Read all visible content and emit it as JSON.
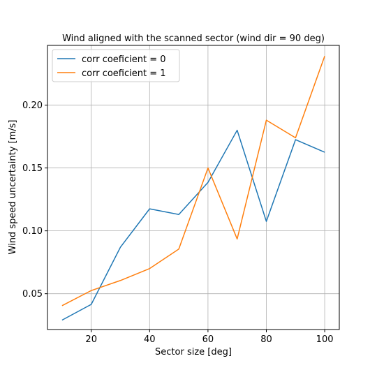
{
  "chart_data": {
    "type": "line",
    "title": "Wind aligned with the scanned sector (wind dir = 90 deg)",
    "xlabel": "Sector size [deg]",
    "ylabel": "Wind speed uncertainty [m/s]",
    "x": [
      10,
      20,
      30,
      40,
      50,
      60,
      70,
      80,
      90,
      100
    ],
    "xlim": [
      5,
      105
    ],
    "ylim": [
      0.0215,
      0.2475
    ],
    "xticks": [
      20,
      40,
      60,
      80,
      100
    ],
    "yticks": [
      0.05,
      0.1,
      0.15,
      0.2
    ],
    "ytick_labels": [
      "0.05",
      "0.10",
      "0.15",
      "0.20"
    ],
    "grid": true,
    "legend_position": "upper-left",
    "series": [
      {
        "name": "corr coeficient = 0",
        "color": "#1f77b4",
        "values": [
          0.029,
          0.0415,
          0.087,
          0.1175,
          0.113,
          0.1385,
          0.18,
          0.1075,
          0.1725,
          0.1625
        ]
      },
      {
        "name": "corr coeficient = 1",
        "color": "#ff7f0e",
        "values": [
          0.0405,
          0.0525,
          0.0605,
          0.07,
          0.0855,
          0.15,
          0.0935,
          0.188,
          0.174,
          0.239
        ]
      }
    ]
  }
}
